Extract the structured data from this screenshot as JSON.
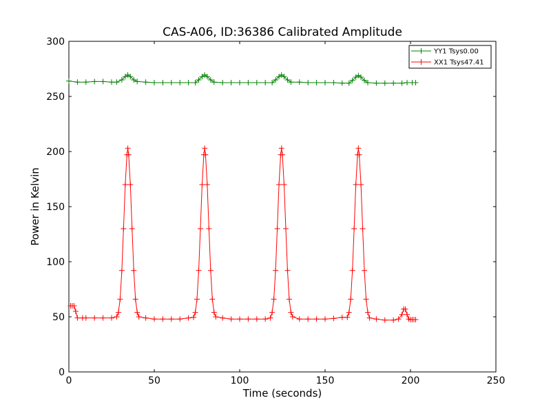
{
  "chart_data": {
    "type": "line",
    "title": "CAS-A06, ID:36386 Calibrated Amplitude",
    "xlabel": "Time (seconds)",
    "ylabel": "Power in Kelvin",
    "xlim": [
      0,
      250
    ],
    "ylim": [
      0,
      300
    ],
    "xticks": [
      0,
      50,
      100,
      150,
      200,
      250
    ],
    "yticks": [
      0,
      50,
      100,
      150,
      200,
      250,
      300
    ],
    "grid": false,
    "legend_position": "top-right",
    "marker": "plus",
    "series": [
      {
        "name": "YY1 Tsys0.00",
        "color": "#008000",
        "points": [
          [
            0,
            264
          ],
          [
            5,
            263
          ],
          [
            10,
            263
          ],
          [
            15,
            263.5
          ],
          [
            20,
            263.5
          ],
          [
            25,
            263
          ],
          [
            28,
            263
          ],
          [
            31,
            265
          ],
          [
            33,
            268
          ],
          [
            34.5,
            269.5
          ],
          [
            36,
            268
          ],
          [
            38,
            265
          ],
          [
            40,
            263.5
          ],
          [
            45,
            263
          ],
          [
            50,
            262.5
          ],
          [
            55,
            262.5
          ],
          [
            60,
            262.5
          ],
          [
            65,
            262.5
          ],
          [
            70,
            262.5
          ],
          [
            74,
            262.5
          ],
          [
            76,
            265
          ],
          [
            78,
            268
          ],
          [
            79.5,
            269.5
          ],
          [
            81,
            268
          ],
          [
            83,
            265
          ],
          [
            85,
            263
          ],
          [
            90,
            262.5
          ],
          [
            95,
            262.5
          ],
          [
            100,
            262.5
          ],
          [
            105,
            262.5
          ],
          [
            110,
            262.5
          ],
          [
            115,
            262.5
          ],
          [
            119,
            262.5
          ],
          [
            121,
            265
          ],
          [
            123,
            268
          ],
          [
            124.5,
            269.5
          ],
          [
            126,
            268
          ],
          [
            128,
            265
          ],
          [
            130,
            263
          ],
          [
            135,
            263
          ],
          [
            140,
            262.5
          ],
          [
            145,
            262.5
          ],
          [
            150,
            262.5
          ],
          [
            155,
            262.5
          ],
          [
            160,
            262
          ],
          [
            164,
            262
          ],
          [
            166,
            264.5
          ],
          [
            168,
            267.5
          ],
          [
            169.5,
            269
          ],
          [
            171,
            267.5
          ],
          [
            173,
            264.5
          ],
          [
            175,
            262.5
          ],
          [
            180,
            262
          ],
          [
            185,
            262
          ],
          [
            190,
            262
          ],
          [
            195,
            262
          ],
          [
            198,
            262.5
          ],
          [
            201,
            262.5
          ],
          [
            203,
            262.5
          ]
        ]
      },
      {
        "name": "XX1 Tsys47.41",
        "color": "#ff0000",
        "points": [
          [
            1,
            60
          ],
          [
            2,
            60
          ],
          [
            3,
            60
          ],
          [
            4,
            55
          ],
          [
            5,
            49
          ],
          [
            8,
            49
          ],
          [
            10,
            49
          ],
          [
            15,
            49
          ],
          [
            20,
            49
          ],
          [
            25,
            49
          ],
          [
            28,
            50
          ],
          [
            29,
            54
          ],
          [
            30,
            66
          ],
          [
            31,
            92
          ],
          [
            32,
            130
          ],
          [
            33,
            170
          ],
          [
            34,
            197
          ],
          [
            34.5,
            203
          ],
          [
            35,
            197
          ],
          [
            36,
            170
          ],
          [
            37,
            130
          ],
          [
            38,
            92
          ],
          [
            39,
            66
          ],
          [
            40,
            54
          ],
          [
            41,
            50
          ],
          [
            45,
            49
          ],
          [
            50,
            48
          ],
          [
            55,
            48
          ],
          [
            60,
            48
          ],
          [
            65,
            48
          ],
          [
            70,
            49
          ],
          [
            73,
            49.5
          ],
          [
            74,
            54
          ],
          [
            75,
            66
          ],
          [
            76,
            92
          ],
          [
            77,
            130
          ],
          [
            78,
            170
          ],
          [
            79,
            197
          ],
          [
            79.5,
            203
          ],
          [
            80,
            197
          ],
          [
            81,
            170
          ],
          [
            82,
            130
          ],
          [
            83,
            92
          ],
          [
            84,
            66
          ],
          [
            85,
            54
          ],
          [
            86,
            50
          ],
          [
            90,
            49
          ],
          [
            95,
            48
          ],
          [
            100,
            48
          ],
          [
            105,
            48
          ],
          [
            110,
            48
          ],
          [
            115,
            48
          ],
          [
            118,
            49
          ],
          [
            119,
            54
          ],
          [
            120,
            66
          ],
          [
            121,
            92
          ],
          [
            122,
            130
          ],
          [
            123,
            170
          ],
          [
            124,
            197
          ],
          [
            124.5,
            203
          ],
          [
            125,
            197
          ],
          [
            126,
            170
          ],
          [
            127,
            130
          ],
          [
            128,
            92
          ],
          [
            129,
            66
          ],
          [
            130,
            54
          ],
          [
            131,
            50
          ],
          [
            135,
            48
          ],
          [
            140,
            48
          ],
          [
            145,
            48
          ],
          [
            150,
            48
          ],
          [
            155,
            48.5
          ],
          [
            160,
            49.5
          ],
          [
            163,
            49.5
          ],
          [
            164,
            54
          ],
          [
            165,
            66
          ],
          [
            166,
            92
          ],
          [
            167,
            130
          ],
          [
            168,
            170
          ],
          [
            169,
            197
          ],
          [
            169.5,
            203
          ],
          [
            170,
            197
          ],
          [
            171,
            170
          ],
          [
            172,
            130
          ],
          [
            173,
            92
          ],
          [
            174,
            66
          ],
          [
            175,
            54
          ],
          [
            176,
            49
          ],
          [
            180,
            48
          ],
          [
            185,
            47
          ],
          [
            190,
            47
          ],
          [
            193,
            48
          ],
          [
            195,
            52
          ],
          [
            196,
            57
          ],
          [
            197,
            57
          ],
          [
            198,
            52
          ],
          [
            199,
            48
          ],
          [
            200,
            47.5
          ],
          [
            201,
            47.5
          ],
          [
            202,
            47.5
          ],
          [
            203,
            47.5
          ]
        ]
      }
    ]
  }
}
